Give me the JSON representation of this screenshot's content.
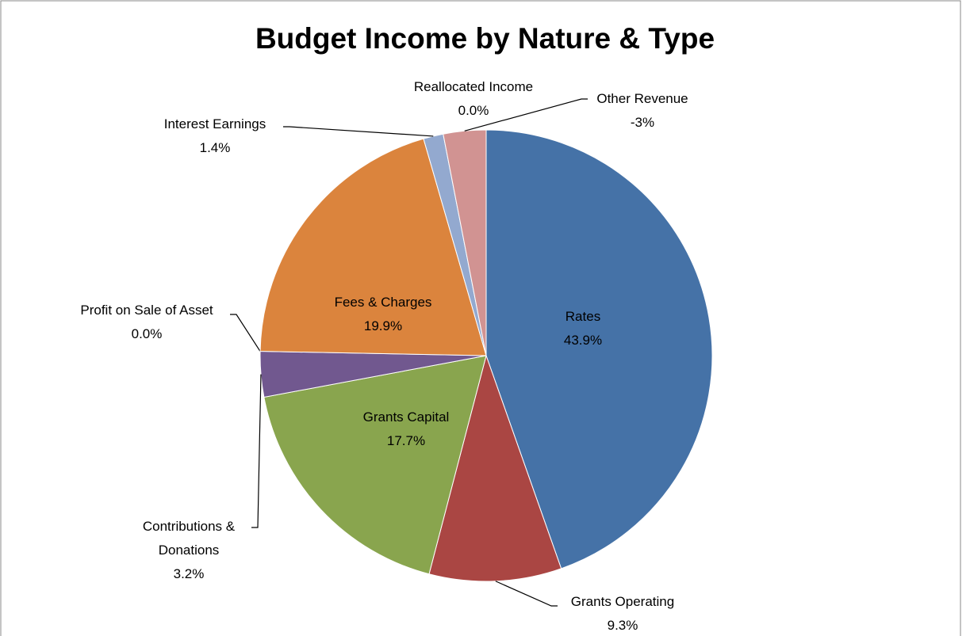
{
  "chart_data": {
    "type": "pie",
    "title": "Budget Income by Nature & Type",
    "categories": [
      "Rates",
      "Grants Operating",
      "Grants Capital",
      "Contributions & Donations",
      "Profit on Sale of Asset",
      "Fees & Charges",
      "Interest Earnings",
      "Other Revenue",
      "Reallocated Income"
    ],
    "values": [
      43.9,
      9.3,
      17.7,
      3.2,
      0.0,
      19.9,
      1.4,
      -3,
      0.0
    ],
    "value_labels": [
      "43.9%",
      "9.3%",
      "17.7%",
      "3.2%",
      "0.0%",
      "19.9%",
      "1.4%",
      "-3%",
      "0.0%"
    ],
    "colors": [
      "#4572a7",
      "#aa4643",
      "#89a54e",
      "#71588f",
      "#4198af",
      "#db843d",
      "#93a9cf",
      "#d19392",
      "#b9cd96"
    ]
  }
}
